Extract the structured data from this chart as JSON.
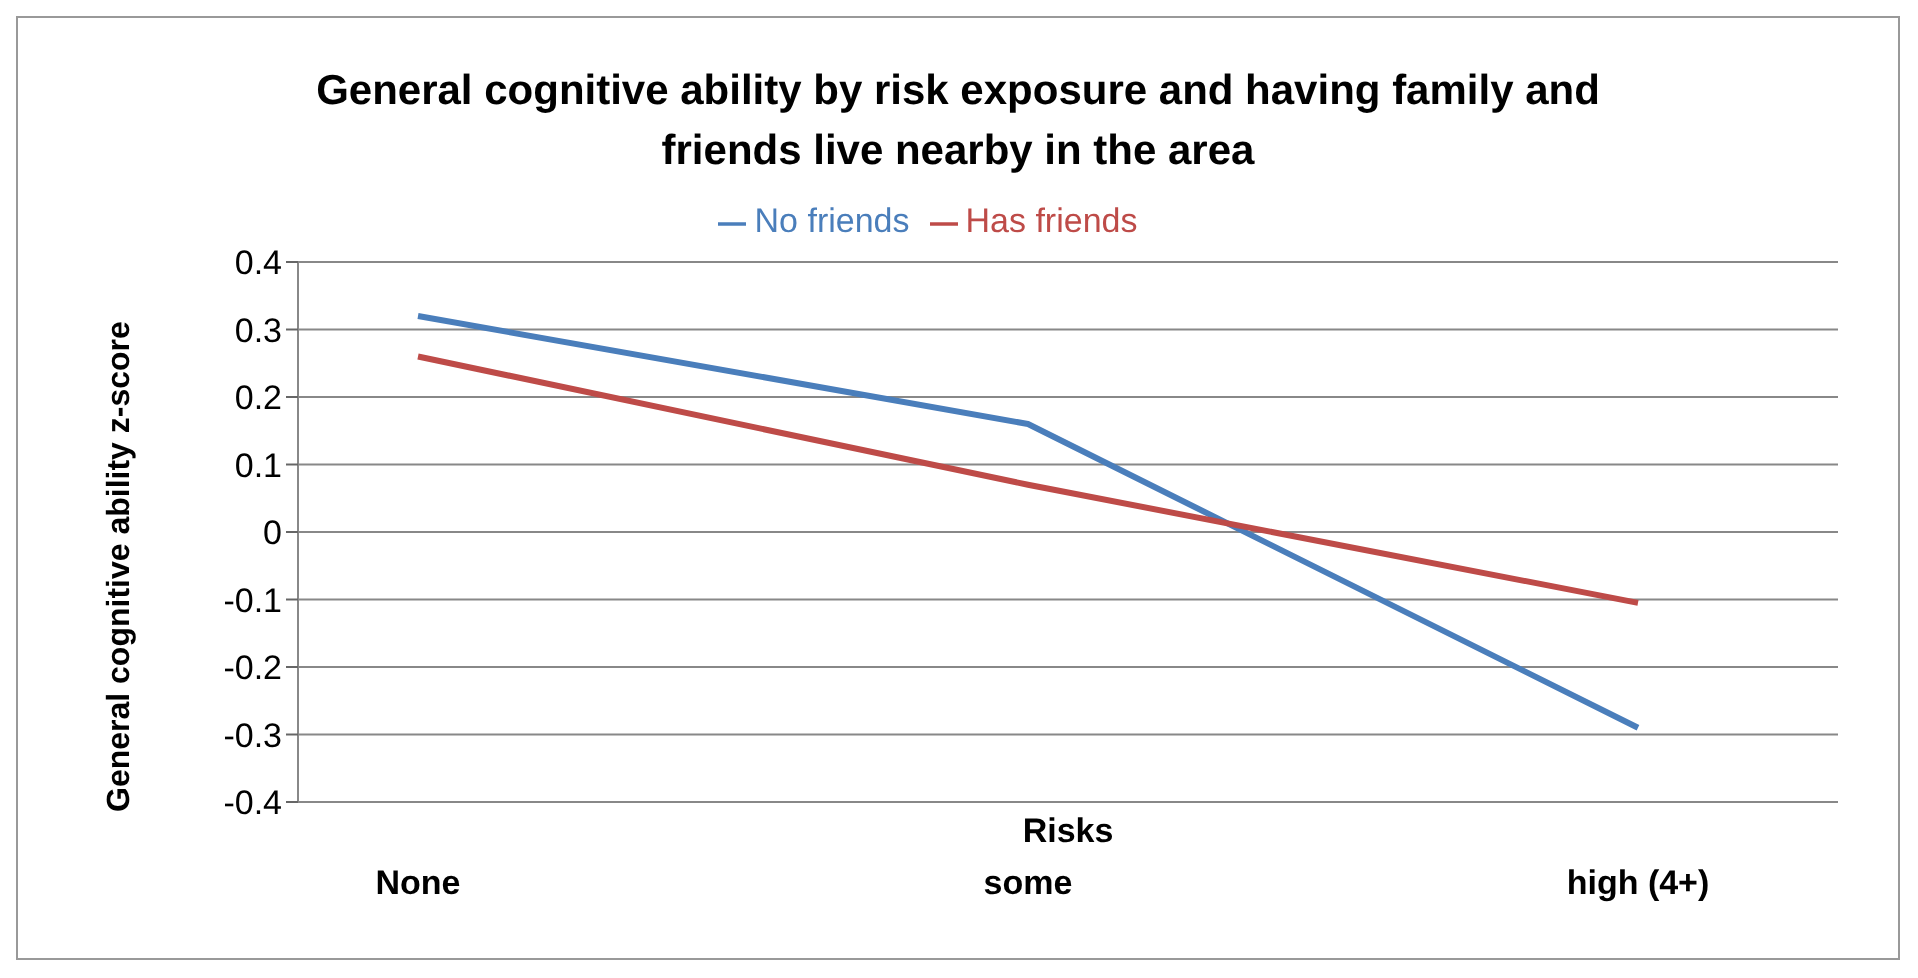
{
  "chart_data": {
    "type": "line",
    "title": "General cognitive ability by risk exposure and having family and friends live nearby in the area",
    "xlabel": "Risks",
    "ylabel": "General cognitive ability z-score",
    "categories": [
      "None",
      "some",
      "high (4+)"
    ],
    "series": [
      {
        "name": "No friends",
        "color": "#4a7ebb",
        "values": [
          0.32,
          0.16,
          -0.29
        ]
      },
      {
        "name": "Has friends",
        "color": "#be4b48",
        "values": [
          0.26,
          0.07,
          -0.105
        ]
      }
    ],
    "ylim": [
      -0.4,
      0.4
    ],
    "yticks": [
      -0.4,
      -0.3,
      -0.2,
      -0.1,
      0,
      0.1,
      0.2,
      0.3,
      0.4
    ],
    "grid": "y",
    "legend": "top",
    "marker": "none"
  }
}
